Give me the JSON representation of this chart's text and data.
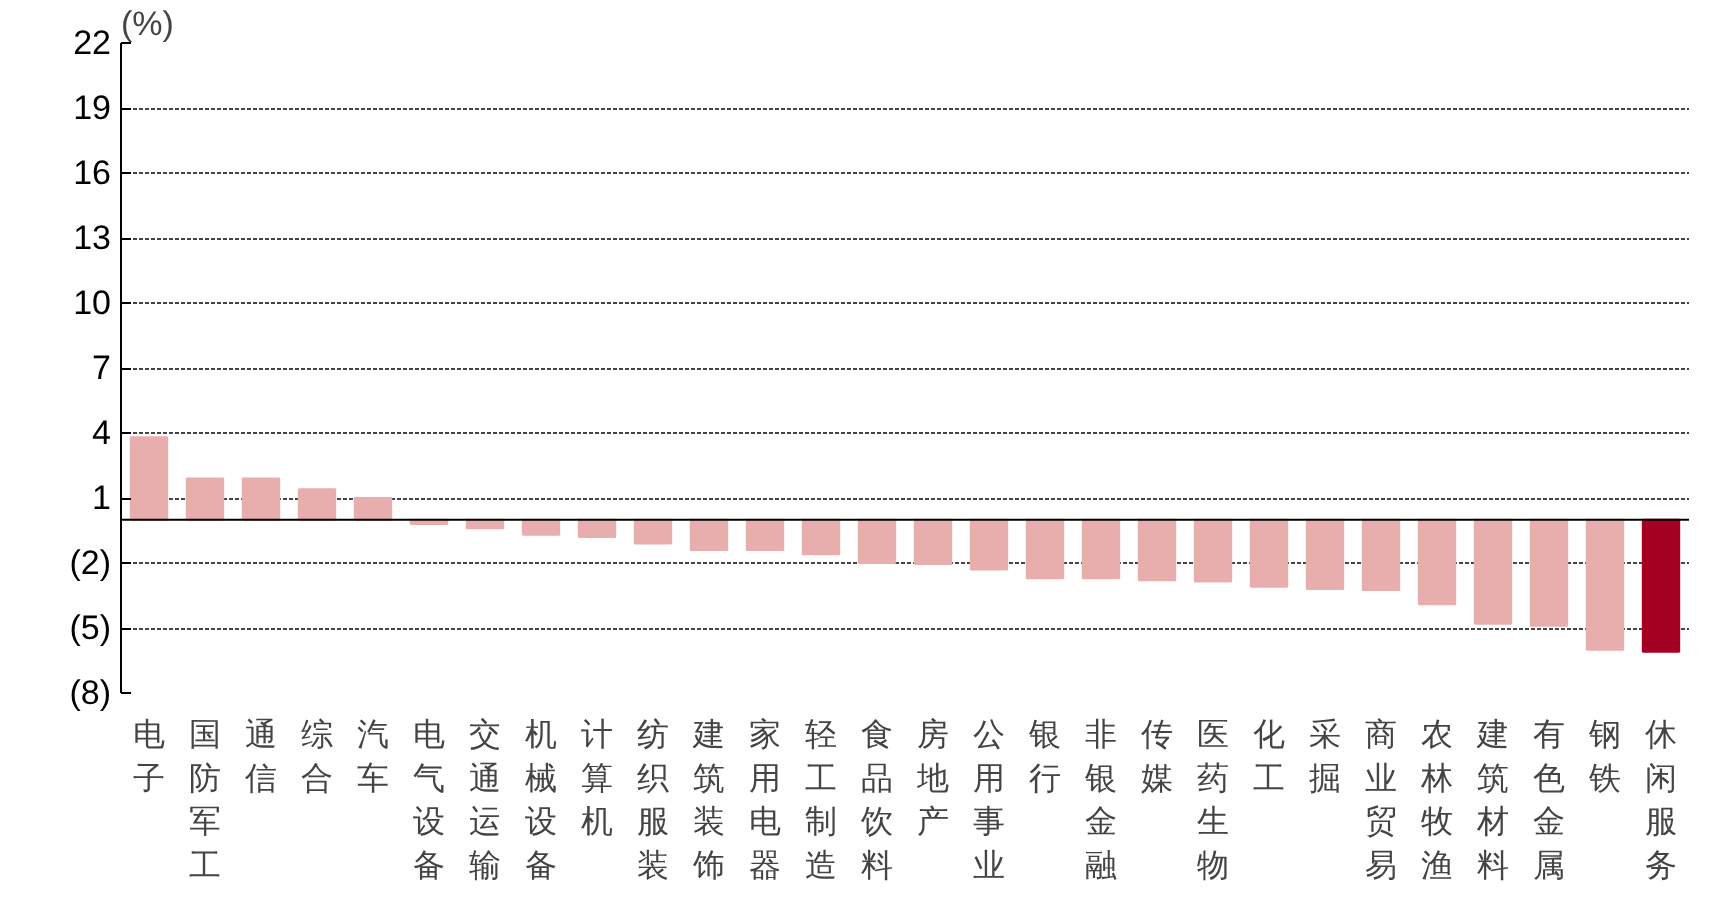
{
  "chart_data": {
    "type": "bar",
    "ylabel": "(%)",
    "categories": [
      "电子",
      "国防军工",
      "通信",
      "综合",
      "汽车",
      "电气设备",
      "交通运输",
      "机械设备",
      "计算机",
      "纺织服装",
      "建筑装饰",
      "家用电器",
      "轻工制造",
      "食品饮料",
      "房地产",
      "公用事业",
      "银行",
      "非银金融",
      "传媒",
      "医药生物",
      "化工",
      "采掘",
      "商业贸易",
      "农林牧渔",
      "建筑材料",
      "有色金属",
      "钢铁",
      "休闲服务"
    ],
    "values": [
      3.8,
      1.9,
      1.9,
      1.4,
      1.0,
      -0.2,
      -0.4,
      -0.7,
      -0.8,
      -1.1,
      -1.4,
      -1.4,
      -1.6,
      -2.0,
      -2.05,
      -2.3,
      -2.7,
      -2.7,
      -2.8,
      -2.85,
      -3.1,
      -3.2,
      -3.25,
      -3.9,
      -4.8,
      -4.9,
      -6.0,
      -6.1
    ],
    "colors": [
      "#e8aeae",
      "#e8aeae",
      "#e8aeae",
      "#e8aeae",
      "#e8aeae",
      "#e8aeae",
      "#e8aeae",
      "#e8aeae",
      "#e8aeae",
      "#e8aeae",
      "#e8aeae",
      "#e8aeae",
      "#e8aeae",
      "#e8aeae",
      "#e8aeae",
      "#e8aeae",
      "#e8aeae",
      "#e8aeae",
      "#e8aeae",
      "#e8aeae",
      "#e8aeae",
      "#e8aeae",
      "#e8aeae",
      "#e8aeae",
      "#e8aeae",
      "#e8aeae",
      "#e8aeae",
      "#a50021"
    ],
    "ylim": [
      -8,
      22
    ],
    "yticks": [
      22,
      19,
      16,
      13,
      10,
      7,
      4,
      1,
      {
        "value": -2,
        "label": "(2)"
      },
      {
        "value": -5,
        "label": "(5)"
      },
      {
        "value": -8,
        "label": "(8)"
      }
    ],
    "grid": "y"
  }
}
